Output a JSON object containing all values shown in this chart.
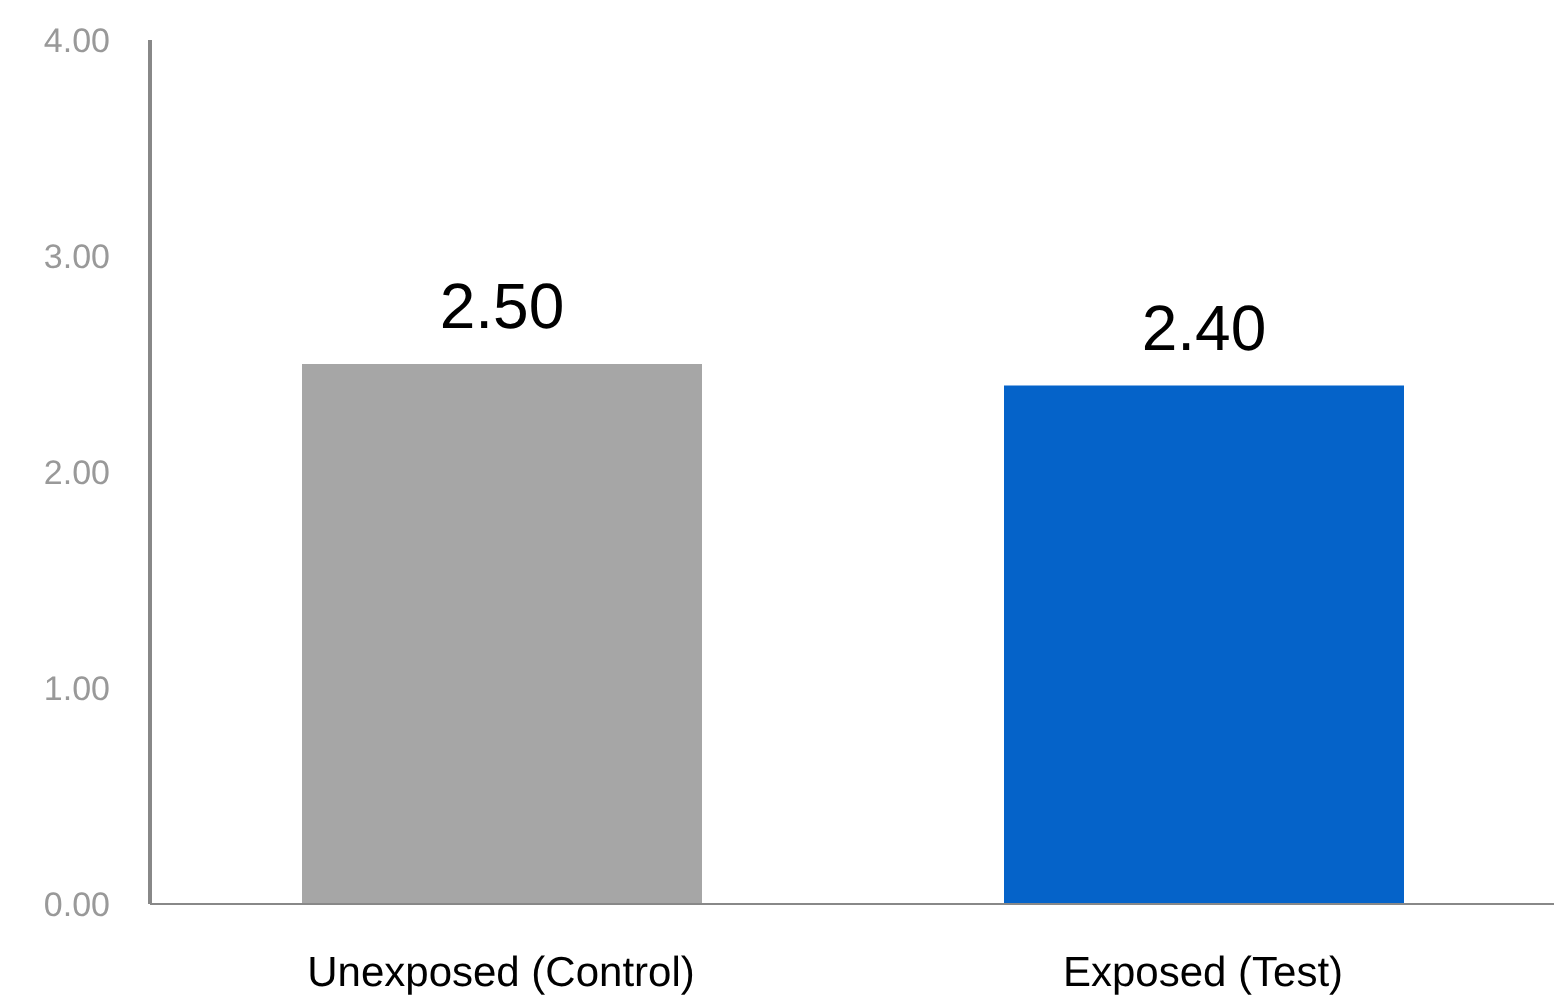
{
  "chart_data": {
    "type": "bar",
    "categories": [
      "Unexposed (Control)",
      "Exposed (Test)"
    ],
    "values": [
      2.5,
      2.4
    ],
    "colors": [
      "#a6a6a6",
      "#0563c9"
    ],
    "value_labels": [
      "2.50",
      "2.40"
    ],
    "ylim": [
      0,
      4
    ],
    "yticks": [
      {
        "value": 0,
        "label": "0.00"
      },
      {
        "value": 1,
        "label": "1.00"
      },
      {
        "value": 2,
        "label": "2.00"
      },
      {
        "value": 3,
        "label": "3.00"
      },
      {
        "value": 4,
        "label": "4.00"
      }
    ],
    "grid": false,
    "legend": false
  }
}
